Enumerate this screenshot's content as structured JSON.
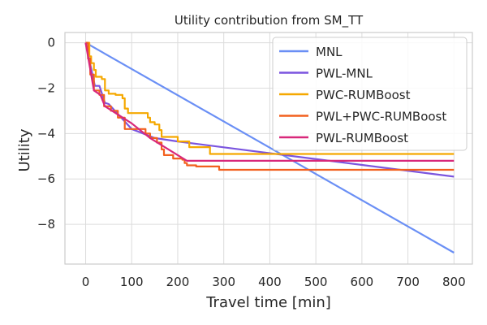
{
  "chart_data": {
    "type": "line",
    "title": "Utility contribution from SM_TT",
    "xlabel": "Travel time [min]",
    "ylabel": "Utility",
    "xlim": [
      -45,
      840
    ],
    "ylim": [
      -9.75,
      0.45
    ],
    "xticks": [
      0,
      100,
      200,
      300,
      400,
      500,
      600,
      700,
      800
    ],
    "xtick_labels": [
      "0",
      "100",
      "200",
      "300",
      "400",
      "500",
      "600",
      "700",
      "800"
    ],
    "yticks": [
      0,
      -2,
      -4,
      -6,
      -8
    ],
    "ytick_labels": [
      "0",
      "−2",
      "−4",
      "−6",
      "−8"
    ],
    "grid": true,
    "legend_position": "top-right",
    "series": [
      {
        "name": "MNL",
        "color": "#6a8ff5",
        "step": false,
        "points": [
          [
            0,
            0
          ],
          [
            800,
            -9.25
          ]
        ]
      },
      {
        "name": "PWL-MNL",
        "color": "#7b55df",
        "step": false,
        "points": [
          [
            0,
            0
          ],
          [
            20,
            -1.9
          ],
          [
            30,
            -1.9
          ],
          [
            42,
            -2.65
          ],
          [
            50,
            -2.7
          ],
          [
            100,
            -3.8
          ],
          [
            150,
            -4.2
          ],
          [
            200,
            -4.35
          ],
          [
            800,
            -5.9
          ]
        ]
      },
      {
        "name": "PWC-RUMBoost",
        "color": "#f5a800",
        "step": true,
        "points": [
          [
            0,
            0
          ],
          [
            8,
            -0.6
          ],
          [
            12,
            -0.9
          ],
          [
            18,
            -1.2
          ],
          [
            22,
            -1.5
          ],
          [
            35,
            -1.6
          ],
          [
            42,
            -2.1
          ],
          [
            50,
            -2.25
          ],
          [
            65,
            -2.3
          ],
          [
            80,
            -2.45
          ],
          [
            85,
            -2.9
          ],
          [
            92,
            -3.1
          ],
          [
            135,
            -3.3
          ],
          [
            140,
            -3.5
          ],
          [
            150,
            -3.6
          ],
          [
            160,
            -3.85
          ],
          [
            165,
            -4.15
          ],
          [
            200,
            -4.35
          ],
          [
            225,
            -4.6
          ],
          [
            270,
            -4.9
          ],
          [
            800,
            -4.9
          ]
        ]
      },
      {
        "name": "PWL+PWC-RUMBoost",
        "color": "#f2601e",
        "step": true,
        "points": [
          [
            0,
            0
          ],
          [
            5,
            -0.7
          ],
          [
            10,
            -1.4
          ],
          [
            18,
            -2.1
          ],
          [
            30,
            -2.3
          ],
          [
            40,
            -2.8
          ],
          [
            55,
            -3.0
          ],
          [
            70,
            -3.3
          ],
          [
            85,
            -3.8
          ],
          [
            130,
            -4.0
          ],
          [
            140,
            -4.2
          ],
          [
            155,
            -4.4
          ],
          [
            165,
            -4.7
          ],
          [
            170,
            -4.95
          ],
          [
            190,
            -5.1
          ],
          [
            210,
            -5.15
          ],
          [
            215,
            -5.3
          ],
          [
            220,
            -5.4
          ],
          [
            240,
            -5.45
          ],
          [
            290,
            -5.6
          ],
          [
            800,
            -5.6
          ]
        ]
      },
      {
        "name": "PWL-RUMBoost",
        "color": "#d8287a",
        "step": false,
        "points": [
          [
            0,
            0
          ],
          [
            18,
            -2.1
          ],
          [
            32,
            -2.3
          ],
          [
            42,
            -2.8
          ],
          [
            100,
            -3.55
          ],
          [
            140,
            -4.2
          ],
          [
            220,
            -5.2
          ],
          [
            800,
            -5.2
          ]
        ]
      }
    ]
  }
}
